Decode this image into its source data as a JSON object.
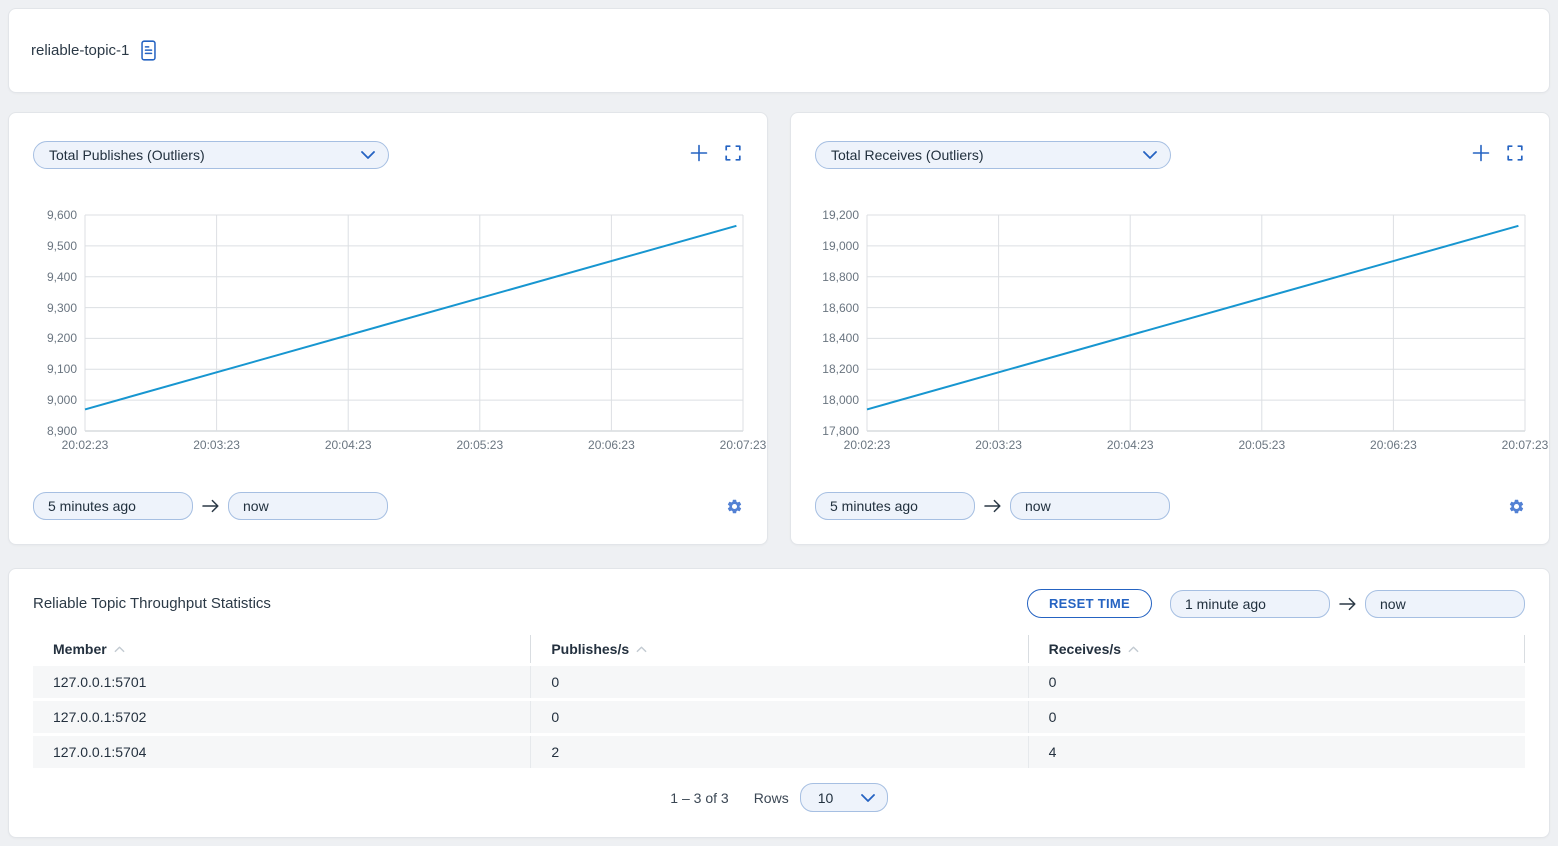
{
  "header": {
    "title": "reliable-topic-1"
  },
  "colors": {
    "accent": "#2563c2",
    "chart_line": "#1796d0",
    "page_background": "#eef0f3",
    "input_background": "#eef3fb",
    "input_border": "#a6bfe2",
    "grid_line": "#dcdfe3",
    "axis_line": "#c3c8cd",
    "tick_text": "#6a7580",
    "row_background": "#f6f7f8"
  },
  "chart_data": [
    {
      "type": "line",
      "title": "Total Publishes (Outliers)",
      "x_ticks": [
        "20:02:23",
        "20:03:23",
        "20:04:23",
        "20:05:23",
        "20:06:23",
        "20:07:23"
      ],
      "ylim": [
        8900,
        9600
      ],
      "y_tick_step": 100,
      "grid": true,
      "legend": "none",
      "line_color": "#1796d0",
      "series": [
        {
          "name": "Total Publishes (Outliers)",
          "points": [
            {
              "time": "20:02:23",
              "value": 8970
            },
            {
              "time": "20:07:20",
              "value": 9565
            }
          ]
        }
      ],
      "time_from": "5 minutes ago",
      "time_to": "now"
    },
    {
      "type": "line",
      "title": "Total Receives (Outliers)",
      "x_ticks": [
        "20:02:23",
        "20:03:23",
        "20:04:23",
        "20:05:23",
        "20:06:23",
        "20:07:23"
      ],
      "ylim": [
        17800,
        19200
      ],
      "y_tick_step": 200,
      "grid": true,
      "legend": "none",
      "line_color": "#1796d0",
      "series": [
        {
          "name": "Total Receives (Outliers)",
          "points": [
            {
              "time": "20:02:23",
              "value": 17940
            },
            {
              "time": "20:07:20",
              "value": 19130
            }
          ]
        }
      ],
      "time_from": "5 minutes ago",
      "time_to": "now"
    }
  ],
  "table": {
    "title": "Reliable Topic Throughput Statistics",
    "reset_button": "RESET TIME",
    "time_from": "1 minute ago",
    "time_to": "now",
    "columns": [
      "Member",
      "Publishes/s",
      "Receives/s"
    ],
    "rows": [
      [
        "127.0.0.1:5701",
        "0",
        "0"
      ],
      [
        "127.0.0.1:5702",
        "0",
        "0"
      ],
      [
        "127.0.0.1:5704",
        "2",
        "4"
      ]
    ],
    "pagination": {
      "range": "1 – 3 of 3",
      "rows_label": "Rows",
      "rows_per_page": "10"
    }
  }
}
